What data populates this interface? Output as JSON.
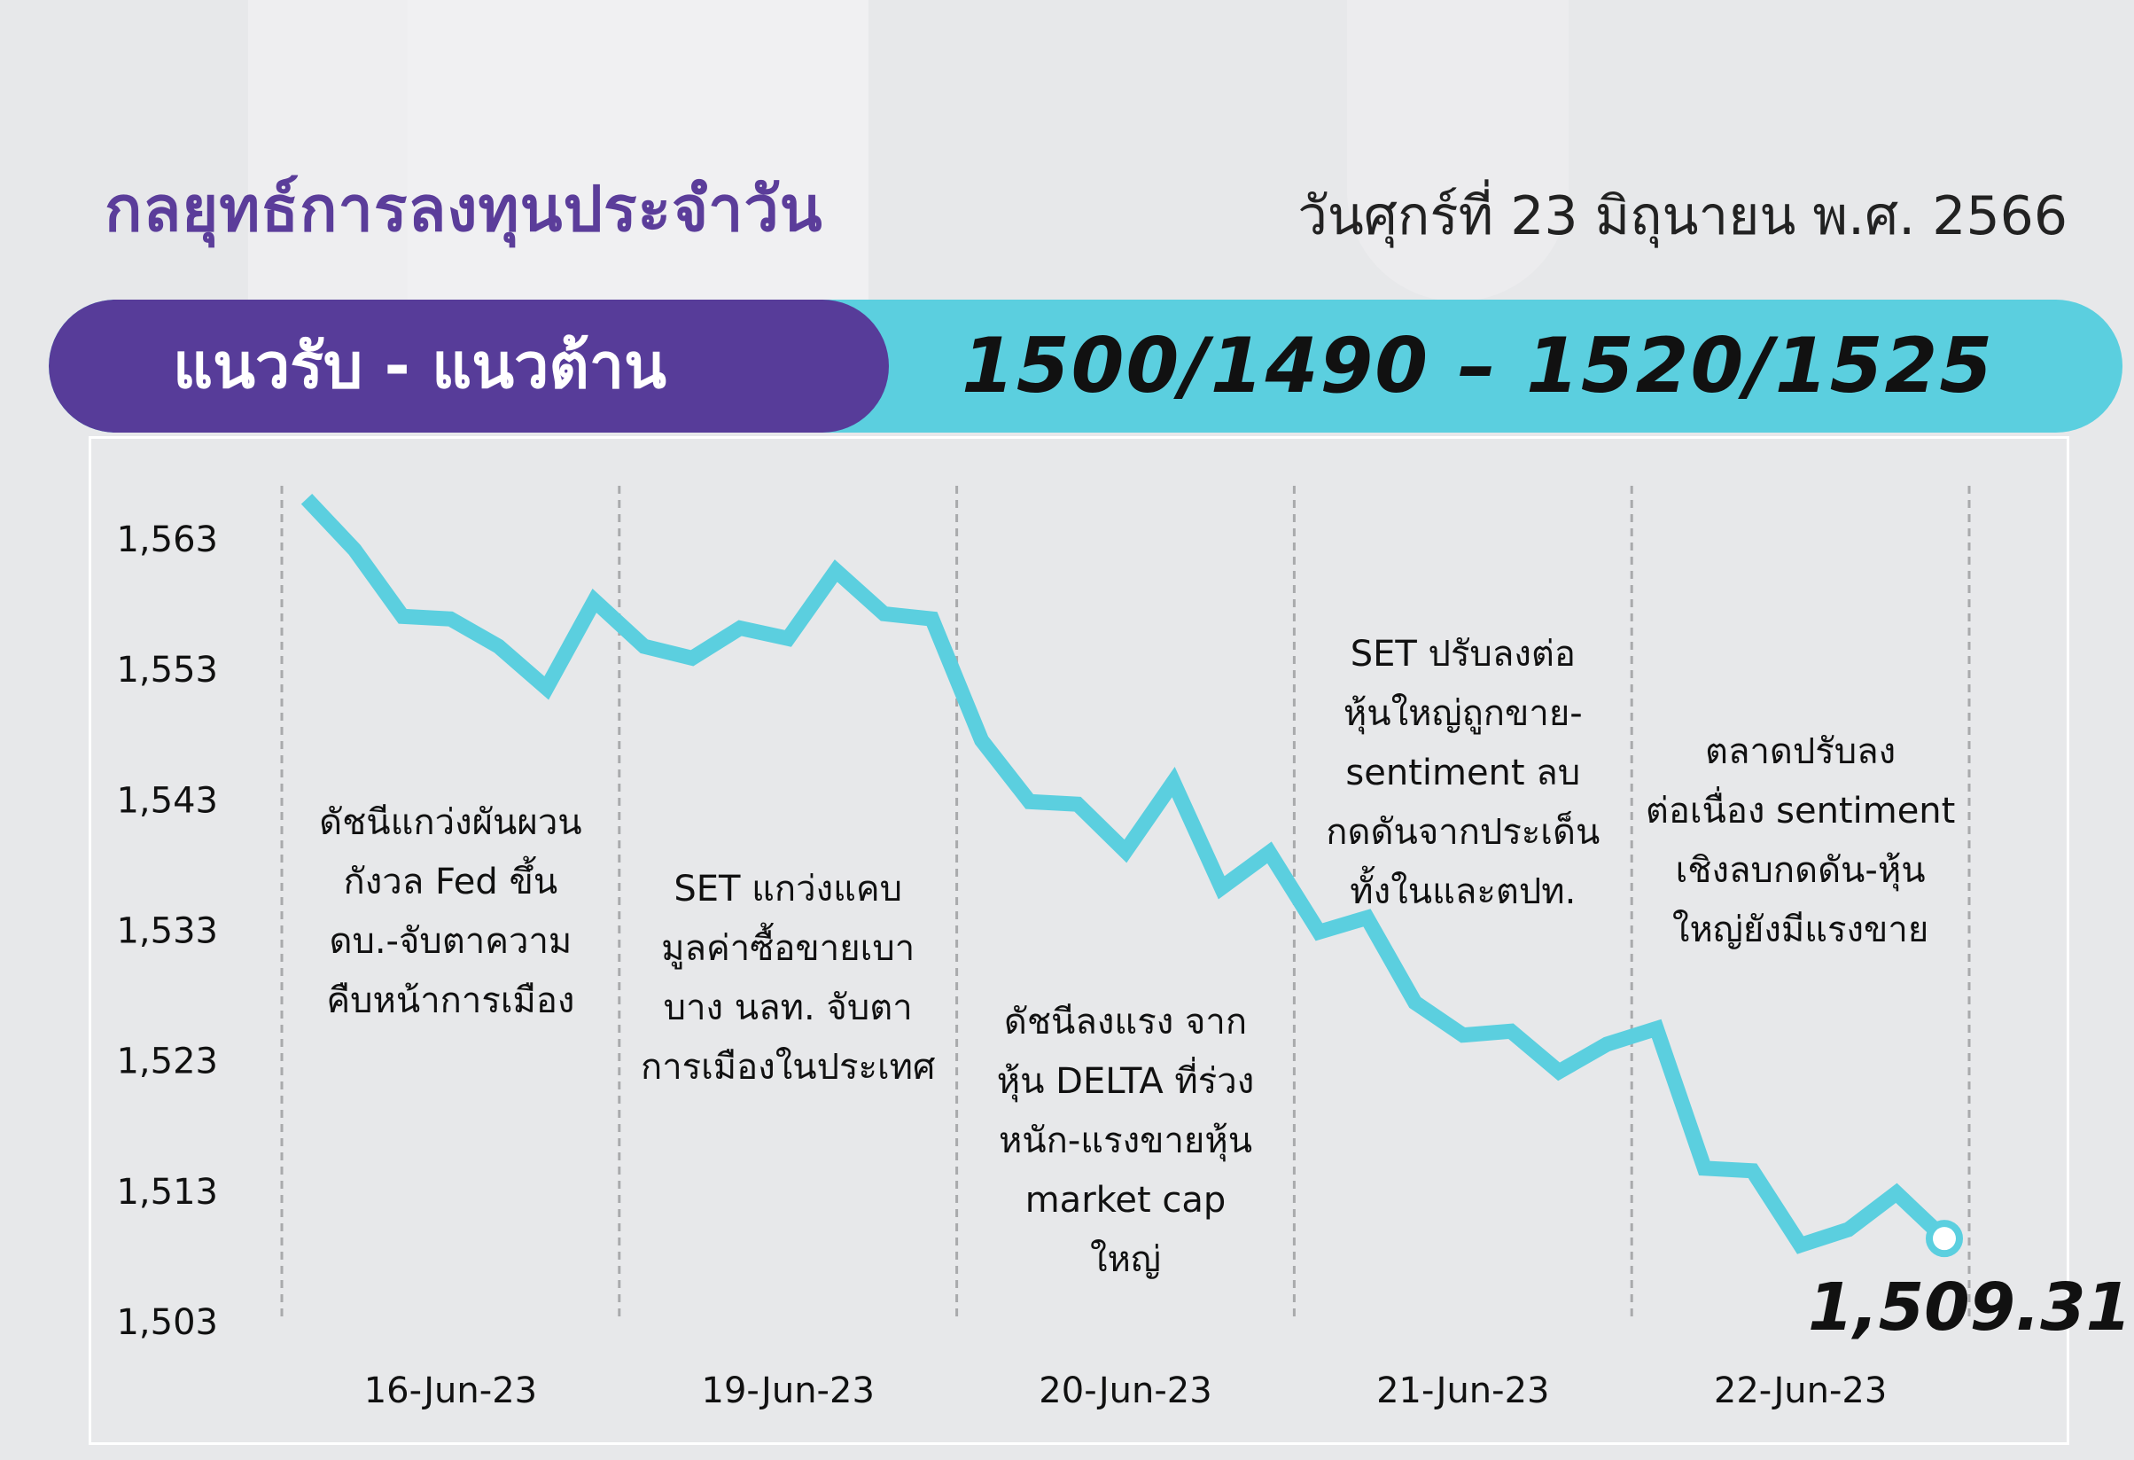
{
  "header": {
    "title": "กลยุทธ์การลงทุนประจำวัน",
    "date": "วันศุกร์ที่ 23 มิถุนายน พ.ศ. 2566"
  },
  "band": {
    "label": "แนวรับ - แนวต้าน",
    "value": "1500/1490 – 1520/1525"
  },
  "chart_data": {
    "type": "line",
    "ylim": [
      1503,
      1568
    ],
    "yticks": [
      "1,563",
      "1,553",
      "1,543",
      "1,533",
      "1,523",
      "1,513",
      "1,503"
    ],
    "ytick_values": [
      1563,
      1553,
      1543,
      1533,
      1523,
      1513,
      1503
    ],
    "categories": [
      "16-Jun-23",
      "19-Jun-23",
      "20-Jun-23",
      "21-Jun-23",
      "22-Jun-23"
    ],
    "series": [
      {
        "color": "#5bcfdf",
        "values": [
          [
            1566.0,
            1562.1,
            1557.0,
            1556.8,
            1554.7,
            1551.5,
            1558.2
          ],
          [
            1554.7,
            1553.8,
            1556.1,
            1555.3,
            1560.5,
            1557.2,
            1556.8
          ],
          [
            1547.5,
            1542.8,
            1542.6,
            1539.0,
            1544.3,
            1536.2,
            1538.9
          ],
          [
            1532.8,
            1533.9,
            1527.4,
            1524.9,
            1525.2,
            1522.1,
            1524.2
          ],
          [
            1525.4,
            1514.7,
            1514.5,
            1508.8,
            1510.0,
            1512.8,
            1509.31
          ]
        ]
      }
    ],
    "last_value_label": "1,509.31",
    "annotations": [
      [
        "ดัชนีแกว่งผันผวน",
        "กังวล Fed ขึ้น",
        "ดบ.-จับตาความ",
        "คืบหน้าการเมือง"
      ],
      [
        "SET แกว่งแคบ",
        "มูลค่าซื้อขายเบา",
        "บาง นลท. จับตา",
        "การเมืองในประเทศ"
      ],
      [
        "ดัชนีลงแรง จาก",
        "หุ้น DELTA ที่ร่วง",
        "หนัก-แรงขายหุ้น",
        "market cap",
        "ใหญ่"
      ],
      [
        "SET ปรับลงต่อ",
        "หุ้นใหญ่ถูกขาย-",
        "sentiment ลบ",
        "กดดันจากประเด็น",
        "ทั้งในและตปท."
      ],
      [
        "ตลาดปรับลง",
        "ต่อเนื่อง sentiment",
        "เชิงลบกดดัน-หุ้น",
        "ใหญ่ยังมีแรงขาย"
      ]
    ],
    "grid": "vertical dashed separators between days",
    "legend": "none"
  }
}
